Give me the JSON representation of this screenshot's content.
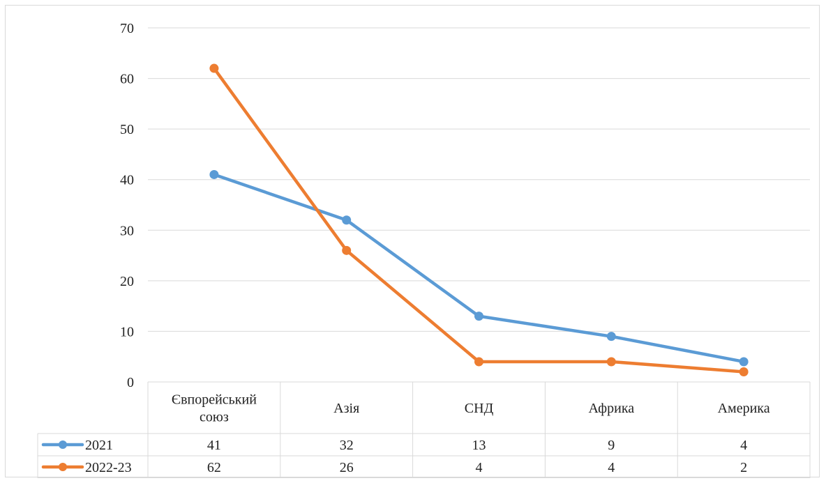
{
  "chart_data": {
    "type": "line",
    "title": "",
    "xlabel": "",
    "ylabel": "",
    "ylim": [
      0,
      70
    ],
    "yticks": [
      0,
      10,
      20,
      30,
      40,
      50,
      60,
      70
    ],
    "grid": true,
    "legend": "data-table-left",
    "categories": [
      "Євпорейський союз",
      "Азія",
      "СНД",
      "Африка",
      "Америка"
    ],
    "category_lines": [
      [
        "Євпорейський",
        "союз"
      ],
      [
        "Азія"
      ],
      [
        "СНД"
      ],
      [
        "Африка"
      ],
      [
        "Америка"
      ]
    ],
    "series": [
      {
        "name": "2021",
        "color": "#5b9bd5",
        "values": [
          41,
          32,
          13,
          9,
          4
        ]
      },
      {
        "name": "2022-23",
        "color": "#ed7d31",
        "values": [
          62,
          26,
          4,
          4,
          2
        ]
      }
    ]
  }
}
